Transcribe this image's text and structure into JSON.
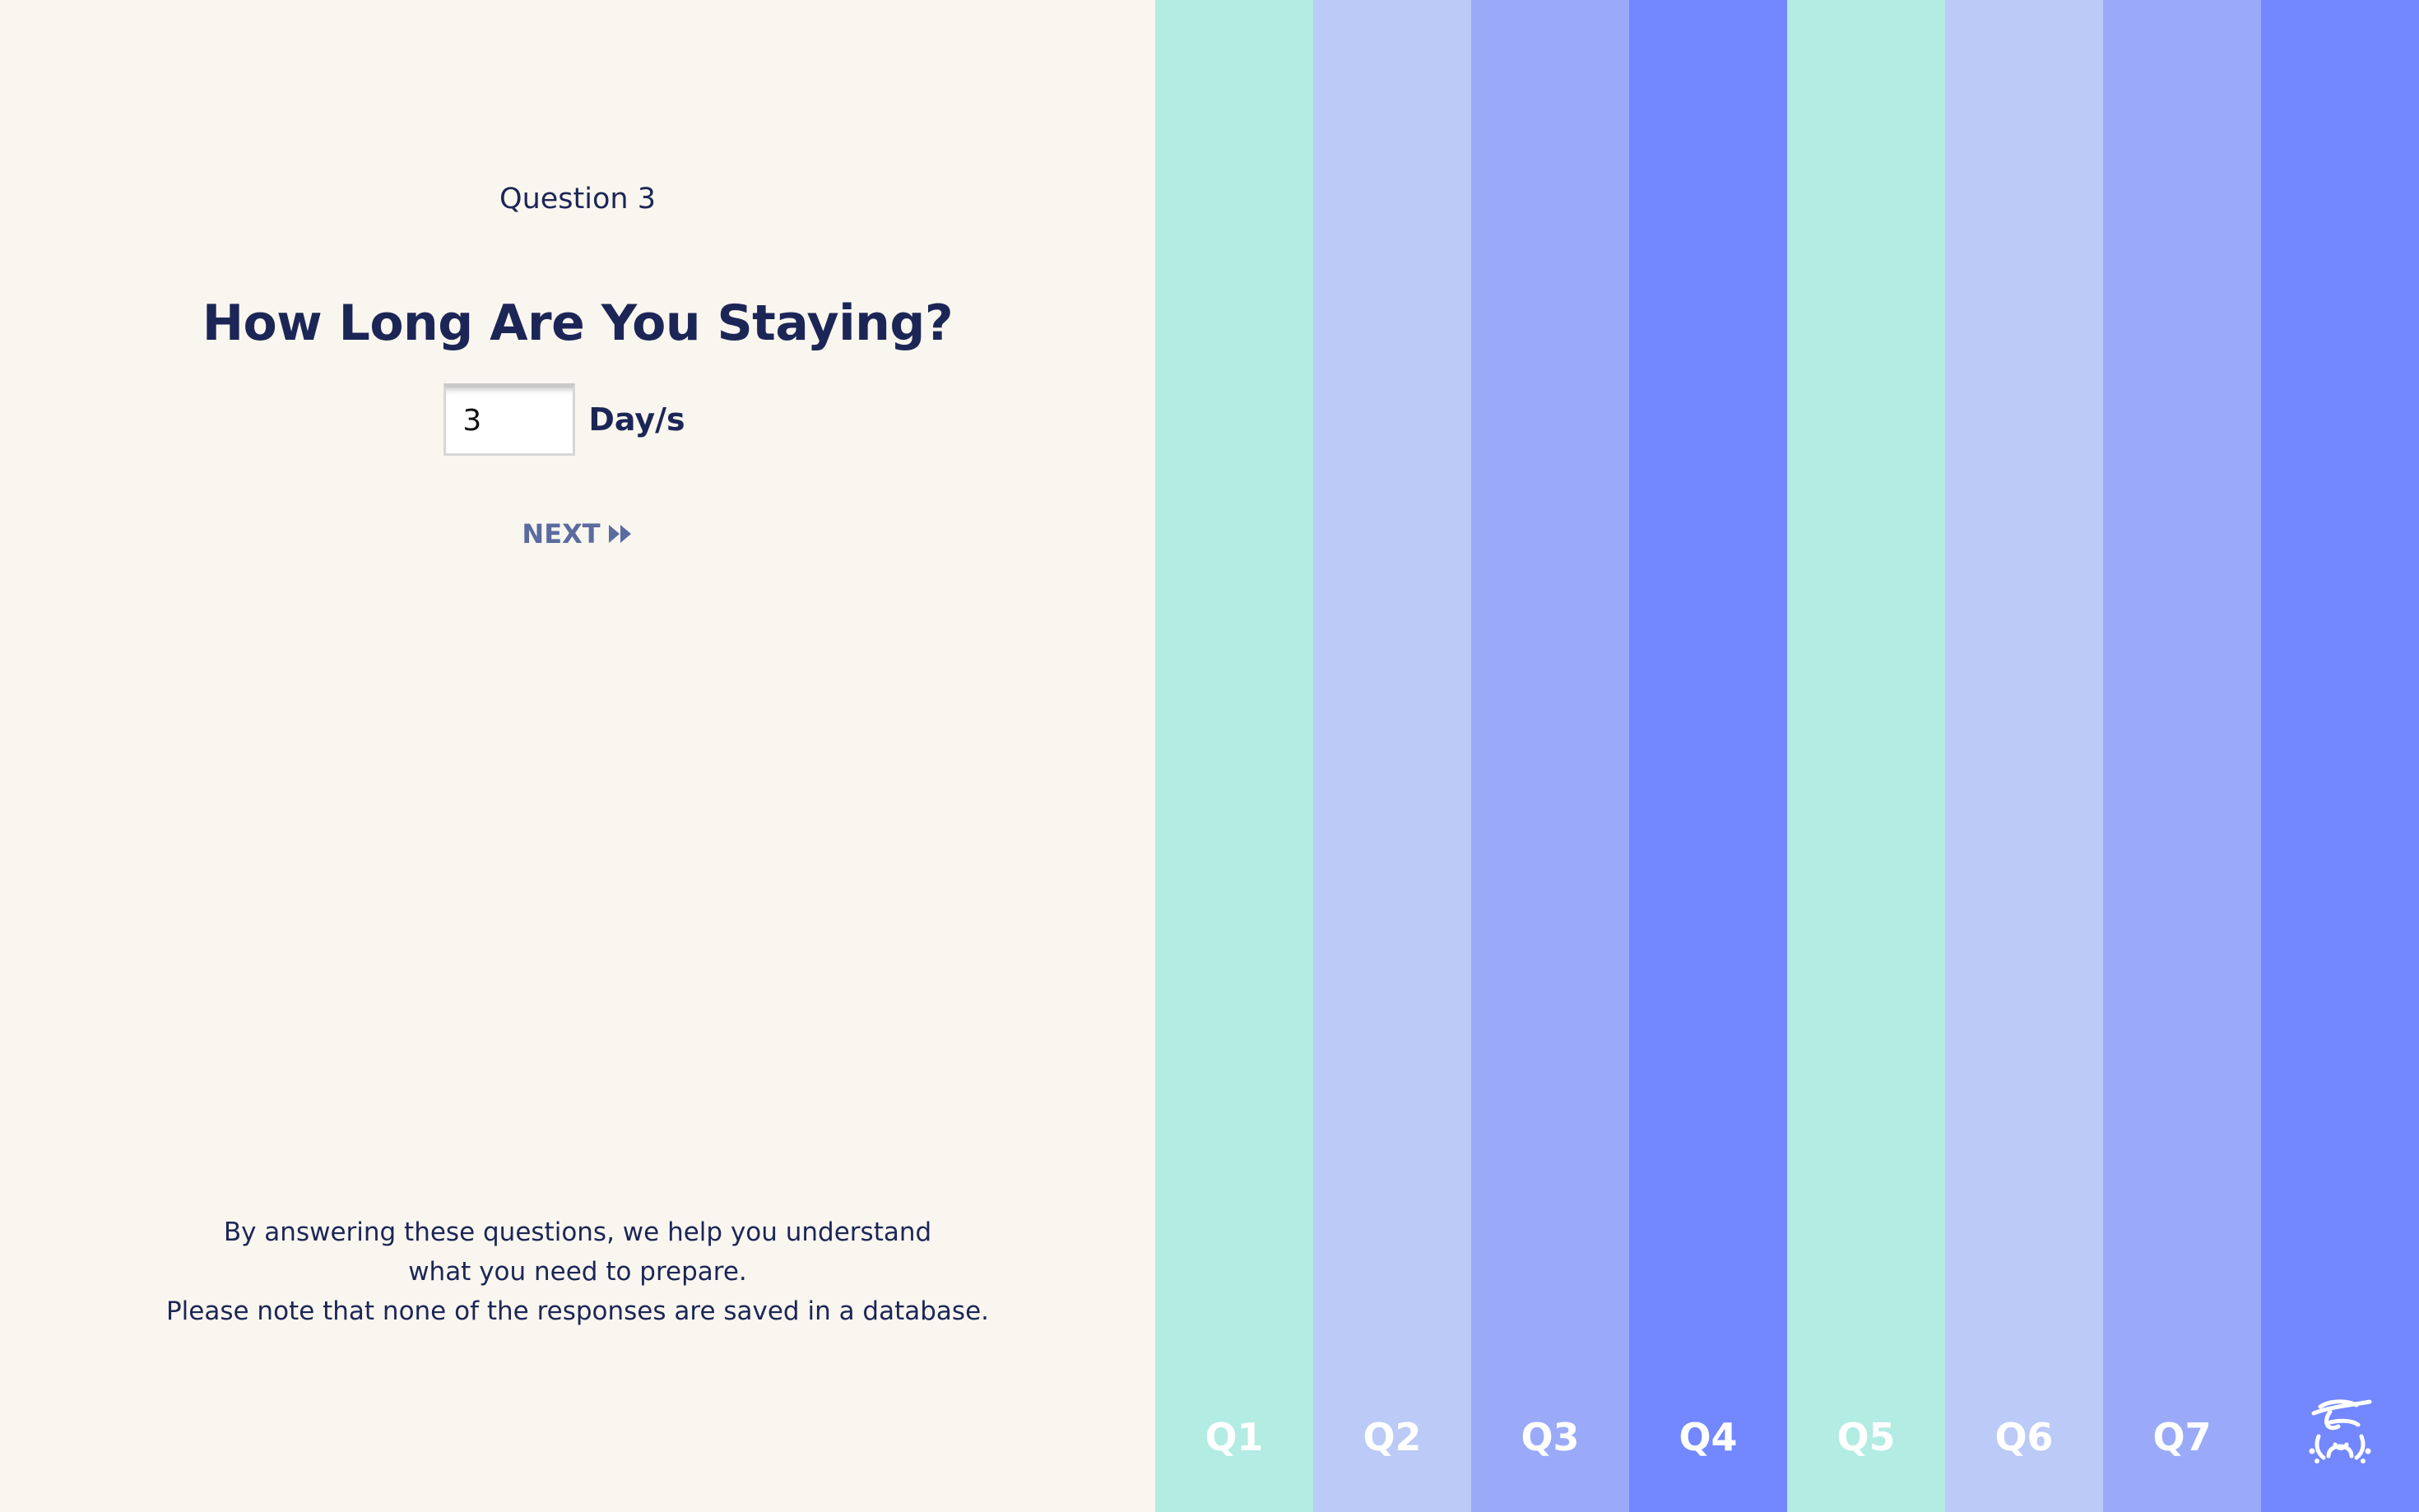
{
  "question": {
    "number_label": "Question 3",
    "title": "How Long Are You Staying?",
    "input_value": "3",
    "unit_label": "Day/s",
    "next_label": "NEXT"
  },
  "footer": {
    "line1": "By answering these questions, we help you understand",
    "line2": "what you need to prepare.",
    "line3": "Please note that none of the responses are saved in a database."
  },
  "nav": {
    "columns": [
      {
        "label": "Q1",
        "color": "#b2ece3"
      },
      {
        "label": "Q2",
        "color": "#bbcaf6"
      },
      {
        "label": "Q3",
        "color": "#9aaaf8"
      },
      {
        "label": "Q4",
        "color": "#7387ff"
      },
      {
        "label": "Q5",
        "color": "#b2ece3"
      },
      {
        "label": "Q6",
        "color": "#bbcaf6"
      },
      {
        "label": "Q7",
        "color": "#9aaaf8"
      },
      {
        "label": "",
        "color": "#7387ff",
        "icon": "traveler-hat-icon"
      }
    ]
  },
  "colors": {
    "text_dark": "#1c2656",
    "next_text": "#5a6ba0",
    "background": "#f9f6ef"
  }
}
